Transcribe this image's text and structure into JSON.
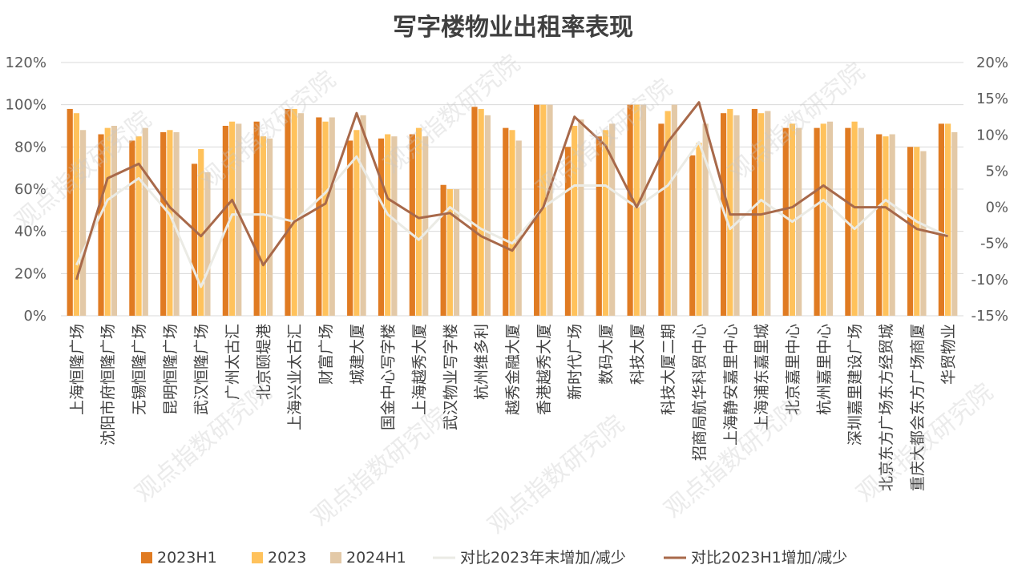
{
  "chart_data": {
    "type": "bar",
    "title": "写字楼物业出租率表现",
    "categories": [
      "上海恒隆广场",
      "沈阳市府恒隆广场",
      "无锡恒隆广场",
      "昆明恒隆广场",
      "武汉恒隆广场",
      "广州太古汇",
      "北京颐堤港",
      "上海兴业太古汇",
      "财富广场",
      "城建大厦",
      "国金中心写字楼",
      "上海越秀大厦",
      "武汉物业写字楼",
      "杭州维多利",
      "越秀金融大厦",
      "香港越秀大厦",
      "新时代广场",
      "数码大厦",
      "科技大厦",
      "科技大厦二期",
      "招商局航华科贸中心",
      "上海静安嘉里中心",
      "上海浦东嘉里城",
      "北京嘉里中心",
      "杭州嘉里中心",
      "深圳嘉里建设广场",
      "北京东方广场东方经贸城",
      "重庆大都会东方广场商厦",
      "华贸物业"
    ],
    "series": [
      {
        "name": "2023H1",
        "color": "#e07b22",
        "axis": "left",
        "kind": "bar",
        "values": [
          98,
          86,
          83,
          87,
          72,
          90,
          92,
          98,
          94,
          83,
          84,
          86,
          62,
          99,
          89,
          100,
          80,
          85,
          100,
          91,
          76,
          96,
          98,
          89,
          89,
          89,
          86,
          80,
          91
        ]
      },
      {
        "name": "2023",
        "color": "#ffc25c",
        "axis": "left",
        "kind": "bar",
        "values": [
          96,
          89,
          85,
          88,
          79,
          92,
          85,
          98,
          92,
          88,
          86,
          89,
          60,
          98,
          88,
          100,
          90,
          88,
          100,
          97,
          82,
          98,
          96,
          91,
          91,
          92,
          85,
          80,
          91
        ]
      },
      {
        "name": "2024H1",
        "color": "#e3c9a7",
        "axis": "left",
        "kind": "bar",
        "values": [
          88,
          90,
          89,
          87,
          68,
          91,
          84,
          96,
          94,
          95,
          85,
          85,
          60,
          95,
          83,
          100,
          93,
          91,
          100,
          100,
          91,
          95,
          97,
          89,
          92,
          89,
          86,
          78,
          87
        ]
      },
      {
        "name": "对比2023年末增加/减少",
        "color": "#ebebe5",
        "axis": "right",
        "kind": "line",
        "values": [
          -8,
          1,
          4,
          -1,
          -11,
          -1,
          -1,
          -2,
          2,
          7,
          -1,
          -4.5,
          0,
          -3,
          -5,
          0,
          3,
          3,
          0,
          3,
          9,
          -3,
          1,
          -2,
          1,
          -3,
          1,
          -2,
          -4
        ]
      },
      {
        "name": "对比2023H1增加/减少",
        "color": "#a8694a",
        "axis": "right",
        "kind": "line",
        "values": [
          -10,
          4,
          6,
          0,
          -4,
          1,
          -8,
          -2,
          0.5,
          13,
          1.2,
          -1.5,
          -0.8,
          -4,
          -6,
          0,
          12.5,
          8.5,
          0,
          9,
          14.5,
          -1,
          -1,
          0,
          3,
          0,
          0,
          -3,
          -4
        ]
      }
    ],
    "y_left": {
      "ylim": [
        0,
        120
      ],
      "ticks": [
        "0%",
        "20%",
        "40%",
        "60%",
        "80%",
        "100%",
        "120%"
      ]
    },
    "y_right": {
      "ylim": [
        -15,
        20
      ],
      "ticks": [
        "-15%",
        "-10%",
        "-5%",
        "0%",
        "5%",
        "10%",
        "15%",
        "20%"
      ]
    },
    "grid": true,
    "legend_position": "bottom"
  },
  "watermark": "观点指数研究院"
}
